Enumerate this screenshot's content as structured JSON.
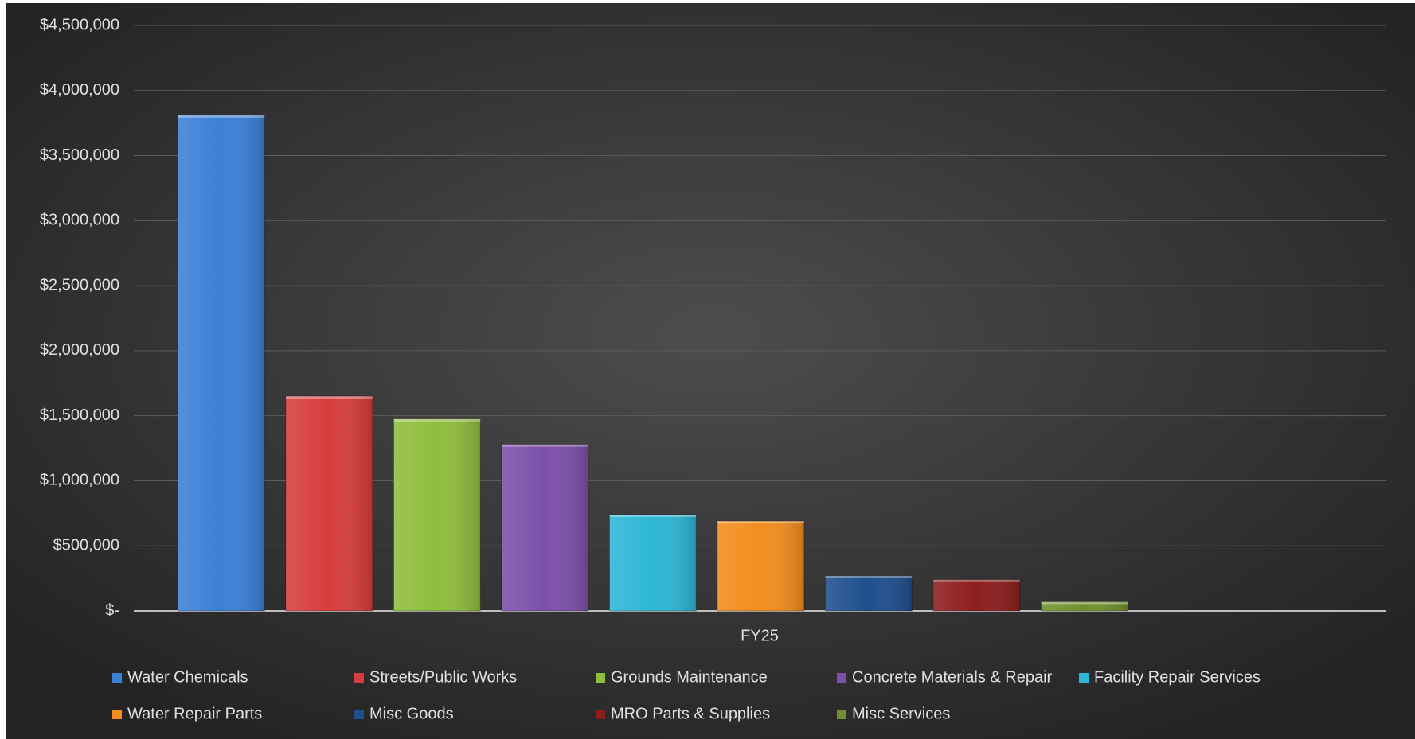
{
  "chart_data": {
    "type": "bar",
    "categories": [
      "FY25"
    ],
    "series": [
      {
        "name": "Water Chemicals",
        "color": "#3b80d6",
        "values": [
          3810000
        ]
      },
      {
        "name": "Streets/Public Works",
        "color": "#d73d3d",
        "values": [
          1650000
        ]
      },
      {
        "name": "Grounds Maintenance",
        "color": "#8fbd3d",
        "values": [
          1475000
        ]
      },
      {
        "name": "Concrete Materials & Repair",
        "color": "#7c50a9",
        "values": [
          1280000
        ]
      },
      {
        "name": "Facility Repair Services",
        "color": "#2db6d5",
        "values": [
          740000
        ]
      },
      {
        "name": "Water Repair Parts",
        "color": "#f28d1d",
        "values": [
          690000
        ]
      },
      {
        "name": "Misc Goods",
        "color": "#204f8d",
        "values": [
          270000
        ]
      },
      {
        "name": "MRO Parts & Supplies",
        "color": "#8d1e1e",
        "values": [
          240000
        ]
      },
      {
        "name": "Misc Services",
        "color": "#6f902d",
        "values": [
          70000
        ]
      }
    ],
    "ylim": [
      0,
      4500000
    ],
    "yticks": [
      {
        "value": 0,
        "label": "$-"
      },
      {
        "value": 500000,
        "label": "$500,000"
      },
      {
        "value": 1000000,
        "label": "$1,000,000"
      },
      {
        "value": 1500000,
        "label": "$1,500,000"
      },
      {
        "value": 2000000,
        "label": "$2,000,000"
      },
      {
        "value": 2500000,
        "label": "$2,500,000"
      },
      {
        "value": 3000000,
        "label": "$3,000,000"
      },
      {
        "value": 3500000,
        "label": "$3,500,000"
      },
      {
        "value": 4000000,
        "label": "$4,000,000"
      },
      {
        "value": 4500000,
        "label": "$4,500,000"
      }
    ],
    "grid": true,
    "legend": "bottom"
  }
}
